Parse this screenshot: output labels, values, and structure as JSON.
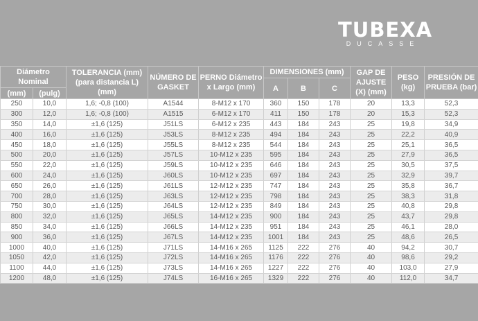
{
  "brand": {
    "name": "TUBEXA",
    "sub": "DUCASSE"
  },
  "headers": {
    "diametro": "Diámetro Nominal",
    "mm": "(mm)",
    "pulg": "(pulg)",
    "tolerancia": "TOLERANCIA (mm) (para distancia L) (mm)",
    "numero": "NÚMERO DE GASKET",
    "perno": "PERNO Diámetro x Largo (mm)",
    "dimensiones": "DIMENSIONES (mm)",
    "a": "A",
    "b": "B",
    "c": "C",
    "gap": "GAP DE AJUSTE (X) (mm)",
    "peso": "PESO (kg)",
    "presion": "PRESIÓN DE PRUEBA (bar)"
  },
  "rows": [
    [
      "250",
      "10,0",
      "1,6; -0,8 (100)",
      "A1544",
      "8-M12 x 170",
      "360",
      "150",
      "178",
      "20",
      "13,3",
      "52,3"
    ],
    [
      "300",
      "12,0",
      "1,6; -0,8 (100)",
      "A1515",
      "6-M12 x 170",
      "411",
      "150",
      "178",
      "20",
      "15,3",
      "52,3"
    ],
    [
      "350",
      "14,0",
      "±1,6 (125)",
      "J51LS",
      "6-M12 x 235",
      "443",
      "184",
      "243",
      "25",
      "19,8",
      "34,9"
    ],
    [
      "400",
      "16,0",
      "±1,6 (125)",
      "J53LS",
      "8-M12 x 235",
      "494",
      "184",
      "243",
      "25",
      "22,2",
      "40,9"
    ],
    [
      "450",
      "18,0",
      "±1,6 (125)",
      "J55LS",
      "8-M12 x 235",
      "544",
      "184",
      "243",
      "25",
      "25,1",
      "36,5"
    ],
    [
      "500",
      "20,0",
      "±1,6 (125)",
      "J57LS",
      "10-M12 x 235",
      "595",
      "184",
      "243",
      "25",
      "27,9",
      "36,5"
    ],
    [
      "550",
      "22,0",
      "±1,6 (125)",
      "J59LS",
      "10-M12 x 235",
      "646",
      "184",
      "243",
      "25",
      "30,5",
      "37,5"
    ],
    [
      "600",
      "24,0",
      "±1,6 (125)",
      "J60LS",
      "10-M12 x 235",
      "697",
      "184",
      "243",
      "25",
      "32,9",
      "39,7"
    ],
    [
      "650",
      "26,0",
      "±1,6 (125)",
      "J61LS",
      "12-M12 x 235",
      "747",
      "184",
      "243",
      "25",
      "35,8",
      "36,7"
    ],
    [
      "700",
      "28,0",
      "±1,6 (125)",
      "J63LS",
      "12-M12 x 235",
      "798",
      "184",
      "243",
      "25",
      "38,3",
      "31,8"
    ],
    [
      "750",
      "30,0",
      "±1,6 (125)",
      "J64LS",
      "12-M12 x 235",
      "849",
      "184",
      "243",
      "25",
      "40,8",
      "29,8"
    ],
    [
      "800",
      "32,0",
      "±1,6 (125)",
      "J65LS",
      "14-M12 x 235",
      "900",
      "184",
      "243",
      "25",
      "43,7",
      "29,8"
    ],
    [
      "850",
      "34,0",
      "±1,6 (125)",
      "J66LS",
      "14-M12 x 235",
      "951",
      "184",
      "243",
      "25",
      "46,1",
      "28,0"
    ],
    [
      "900",
      "36,0",
      "±1,6 (125)",
      "J67LS",
      "14-M12 x 235",
      "1001",
      "184",
      "243",
      "25",
      "48,6",
      "26,5"
    ],
    [
      "1000",
      "40,0",
      "±1,6 (125)",
      "J71LS",
      "14-M16 x 265",
      "1125",
      "222",
      "276",
      "40",
      "94,2",
      "30,7"
    ],
    [
      "1050",
      "42,0",
      "±1,6 (125)",
      "J72LS",
      "14-M16 x 265",
      "1176",
      "222",
      "276",
      "40",
      "98,6",
      "29,2"
    ],
    [
      "1100",
      "44,0",
      "±1,6 (125)",
      "J73LS",
      "14-M16 x 265",
      "1227",
      "222",
      "276",
      "40",
      "103,0",
      "27,9"
    ],
    [
      "1200",
      "48,0",
      "±1,6 (125)",
      "J74LS",
      "16-M16 x 265",
      "1329",
      "222",
      "276",
      "40",
      "112,0",
      "34,7"
    ]
  ]
}
